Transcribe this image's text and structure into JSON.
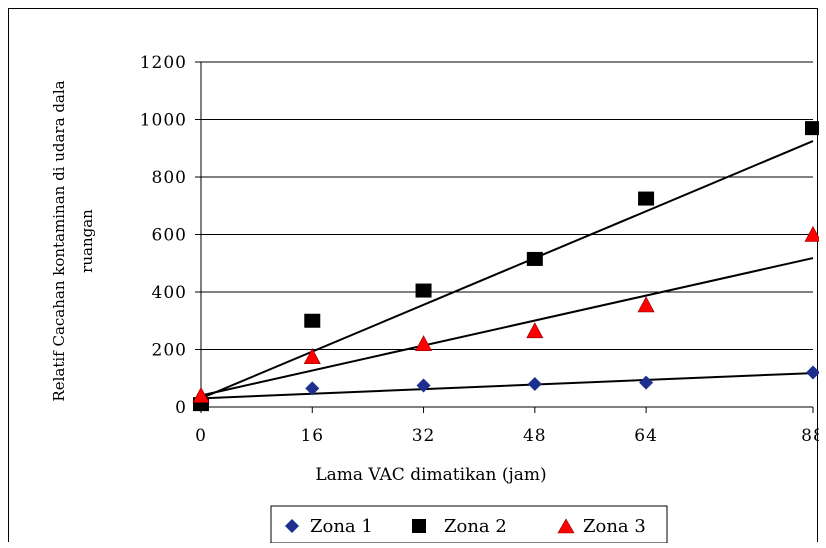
{
  "chart_data": {
    "type": "scatter",
    "title": "",
    "xlabel": "Lama VAC dimatikan (jam)",
    "ylabel_lines": [
      "Relatif Cacahan kontaminan di udara dala",
      "ruangan"
    ],
    "xlim": [
      0,
      88
    ],
    "ylim": [
      0,
      1200
    ],
    "x_ticks": [
      {
        "value": 0,
        "label": "0"
      },
      {
        "value": 16,
        "label": "16"
      },
      {
        "value": 32,
        "label": "32"
      },
      {
        "value": 48,
        "label": "48"
      },
      {
        "value": 64,
        "label": "64"
      },
      {
        "value": 88,
        "label": "88"
      }
    ],
    "y_ticks": [
      {
        "value": 0,
        "label": "0"
      },
      {
        "value": 200,
        "label": "200"
      },
      {
        "value": 400,
        "label": "400"
      },
      {
        "value": 600,
        "label": "600"
      },
      {
        "value": 800,
        "label": "800"
      },
      {
        "value": 1000,
        "label": "1000"
      },
      {
        "value": 1200,
        "label": "1200"
      }
    ],
    "grid": {
      "horizontal": true,
      "vertical": false
    },
    "legend_position": "bottom",
    "series": [
      {
        "name": "Zona 1",
        "marker": "diamond",
        "color": "#1f2f8f",
        "x": [
          0,
          16,
          32,
          48,
          64,
          88
        ],
        "y": [
          20,
          65,
          75,
          80,
          85,
          120
        ],
        "trend": {
          "x": [
            0,
            88
          ],
          "y": [
            30,
            118
          ]
        }
      },
      {
        "name": "Zona 2",
        "marker": "square",
        "color": "#000000",
        "x": [
          0,
          16,
          32,
          48,
          64,
          88
        ],
        "y": [
          10,
          300,
          405,
          515,
          725,
          970
        ],
        "trend": {
          "x": [
            0,
            88
          ],
          "y": [
            30,
            925
          ]
        }
      },
      {
        "name": "Zona 3",
        "marker": "triangle",
        "color": "#ff0000",
        "x": [
          0,
          16,
          32,
          48,
          64,
          88
        ],
        "y": [
          40,
          175,
          220,
          265,
          355,
          600
        ],
        "trend": {
          "x": [
            0,
            88
          ],
          "y": [
            40,
            518
          ]
        }
      }
    ]
  }
}
